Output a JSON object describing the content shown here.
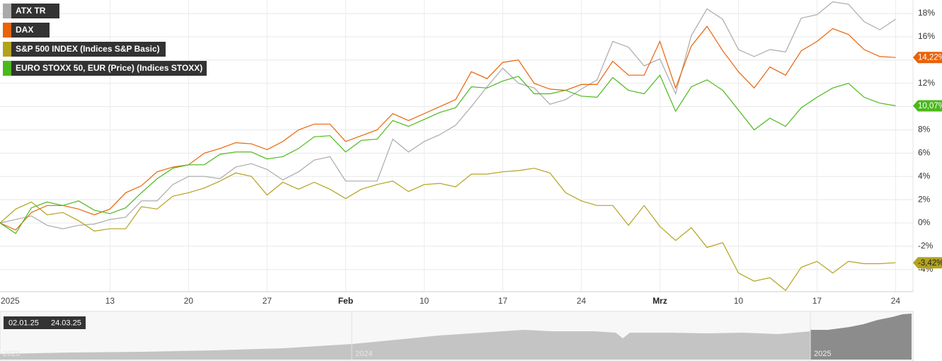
{
  "chart_data": {
    "type": "line",
    "categories": [
      "2025",
      null,
      null,
      null,
      null,
      null,
      null,
      "13",
      null,
      null,
      null,
      null,
      "20",
      null,
      null,
      null,
      null,
      "27",
      null,
      null,
      null,
      null,
      "Feb",
      null,
      null,
      null,
      null,
      "10",
      null,
      null,
      null,
      null,
      "17",
      null,
      null,
      null,
      null,
      "24",
      null,
      null,
      null,
      null,
      "Mrz",
      null,
      null,
      null,
      null,
      "10",
      null,
      null,
      null,
      null,
      "17",
      null,
      null,
      null,
      null,
      "24"
    ],
    "series": [
      {
        "name": "ATX TR",
        "color": "#aaaaaa",
        "values": [
          0,
          0.3,
          0.6,
          -0.2,
          -0.5,
          -0.2,
          -0.1,
          0.3,
          0.5,
          1.9,
          1.9,
          3.3,
          4.0,
          4.0,
          3.8,
          4.8,
          5.1,
          4.6,
          3.7,
          4.4,
          5.4,
          5.7,
          3.6,
          3.6,
          3.6,
          7.2,
          6.1,
          7.0,
          7.6,
          8.4,
          10.0,
          11.7,
          13.3,
          12.0,
          11.6,
          10.2,
          10.6,
          11.5,
          12.3,
          15.6,
          15.1,
          13.5,
          14.1,
          11.1,
          16.1,
          18.4,
          17.5,
          14.9,
          14.3,
          14.9,
          14.7,
          17.6,
          17.9,
          19.0,
          18.8,
          17.3,
          16.6,
          17.5
        ]
      },
      {
        "name": "DAX",
        "color": "#e8630a",
        "values": [
          0,
          -0.6,
          0.9,
          1.5,
          1.5,
          1.2,
          0.7,
          1.2,
          2.6,
          3.2,
          4.4,
          4.8,
          5.0,
          6.0,
          6.4,
          6.9,
          6.8,
          6.3,
          7.0,
          8.0,
          8.5,
          8.5,
          7.0,
          7.5,
          8.0,
          9.4,
          8.8,
          9.4,
          10.0,
          10.6,
          13.0,
          12.4,
          13.8,
          14.0,
          12.0,
          11.5,
          11.4,
          11.9,
          11.9,
          13.9,
          12.7,
          12.7,
          15.6,
          11.6,
          15.2,
          16.9,
          14.8,
          13.0,
          11.6,
          13.4,
          12.7,
          14.8,
          15.6,
          16.7,
          16.2,
          14.9,
          14.3,
          14.22
        ],
        "value_labels": [
          null,
          null,
          null,
          null,
          null,
          null,
          null,
          null,
          null,
          null,
          null,
          null,
          null,
          null,
          null,
          null,
          null,
          null,
          null,
          null,
          null,
          null,
          null,
          null,
          null,
          null,
          null,
          null,
          null,
          null,
          null,
          null,
          null,
          null,
          null,
          null,
          null,
          null,
          null,
          null,
          null,
          null,
          null,
          null,
          null,
          null,
          null,
          null,
          null,
          null,
          null,
          null,
          null,
          null,
          null,
          null,
          null,
          "14,22%"
        ]
      },
      {
        "name": "S&P 500 INDEX (Indices S&P Basic)",
        "color": "#b3a21e",
        "values": [
          0,
          1.2,
          1.8,
          0.7,
          0.9,
          0.2,
          -0.7,
          -0.5,
          -0.5,
          1.4,
          1.2,
          2.3,
          2.6,
          3.0,
          3.6,
          4.3,
          4.0,
          2.4,
          3.5,
          2.9,
          3.5,
          2.9,
          2.1,
          2.9,
          3.3,
          3.6,
          2.7,
          3.3,
          3.4,
          3.1,
          4.2,
          4.2,
          4.4,
          4.5,
          4.7,
          4.3,
          2.6,
          1.9,
          1.5,
          1.5,
          -0.2,
          1.5,
          -0.3,
          -1.5,
          -0.4,
          -2.1,
          -1.7,
          -4.3,
          -5.0,
          -4.7,
          -5.8,
          -3.8,
          -3.3,
          -4.3,
          -3.3,
          -3.5,
          -3.5,
          -3.42
        ],
        "value_labels": [
          null,
          null,
          null,
          null,
          null,
          null,
          null,
          null,
          null,
          null,
          null,
          null,
          null,
          null,
          null,
          null,
          null,
          null,
          null,
          null,
          null,
          null,
          null,
          null,
          null,
          null,
          null,
          null,
          null,
          null,
          null,
          null,
          null,
          null,
          null,
          null,
          null,
          null,
          null,
          null,
          null,
          null,
          null,
          null,
          null,
          null,
          null,
          null,
          null,
          null,
          null,
          null,
          null,
          null,
          null,
          null,
          null,
          "-3,42%"
        ]
      },
      {
        "name": "EURO STOXX 50, EUR (Price) (Indices STOXX)",
        "color": "#4cb81c",
        "values": [
          0,
          -0.9,
          1.3,
          1.8,
          1.5,
          1.9,
          1.1,
          0.8,
          1.3,
          2.6,
          3.8,
          4.7,
          5.0,
          5.0,
          5.9,
          6.1,
          6.1,
          5.5,
          5.7,
          6.4,
          7.4,
          7.5,
          6.1,
          7.1,
          7.2,
          8.8,
          8.3,
          8.9,
          9.5,
          9.9,
          11.7,
          11.6,
          12.2,
          12.6,
          11.1,
          11.1,
          11.4,
          10.9,
          10.8,
          12.5,
          11.4,
          11.1,
          12.7,
          9.6,
          11.7,
          12.3,
          11.4,
          9.7,
          8.0,
          9.0,
          8.3,
          9.9,
          10.8,
          11.6,
          12.0,
          10.8,
          10.3,
          10.07
        ],
        "value_labels": [
          null,
          null,
          null,
          null,
          null,
          null,
          null,
          null,
          null,
          null,
          null,
          null,
          null,
          null,
          null,
          null,
          null,
          null,
          null,
          null,
          null,
          null,
          null,
          null,
          null,
          null,
          null,
          null,
          null,
          null,
          null,
          null,
          null,
          null,
          null,
          null,
          null,
          null,
          null,
          null,
          null,
          null,
          null,
          null,
          null,
          null,
          null,
          null,
          null,
          null,
          null,
          null,
          null,
          null,
          null,
          null,
          null,
          "10,07%"
        ]
      }
    ],
    "ylim": [
      -5.9,
      19.16
    ],
    "yticks": [
      {
        "value": 18,
        "label": "18%"
      },
      {
        "value": 16,
        "label": "16%"
      },
      {
        "value": 14,
        "label": "14%"
      },
      {
        "value": 12,
        "label": "12%"
      },
      {
        "value": 10,
        "label": "10%"
      },
      {
        "value": 8,
        "label": "8%"
      },
      {
        "value": 6,
        "label": "6%"
      },
      {
        "value": 4,
        "label": "4%"
      },
      {
        "value": 2,
        "label": "2%"
      },
      {
        "value": 0,
        "label": "0%"
      },
      {
        "value": -2,
        "label": "-2%"
      },
      {
        "value": -4,
        "label": "-4%"
      }
    ],
    "grid": true,
    "legend": "top-left",
    "navigator": {
      "from": "02.01.25",
      "to": "24.03.25",
      "years": [
        "2023",
        "2024",
        "2025"
      ]
    }
  }
}
